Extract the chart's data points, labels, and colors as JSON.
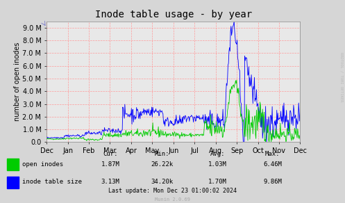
{
  "title": "Inode table usage - by year",
  "ylabel": "number of open inodes",
  "background_color": "#d6d6d6",
  "plot_bg_color": "#e8e8e8",
  "grid_color": "#ff9999",
  "x_tick_labels": [
    "Dec",
    "Jan",
    "Feb",
    "Mar",
    "Apr",
    "May",
    "Jun",
    "Jul",
    "Aug",
    "Sep",
    "Oct",
    "Nov",
    "Dec"
  ],
  "y_tick_labels": [
    "0.0",
    "1.0 M",
    "2.0 M",
    "3.0 M",
    "4.0 M",
    "5.0 M",
    "6.0 M",
    "7.0 M",
    "8.0 M",
    "9.0 M"
  ],
  "y_max": 9500000,
  "legend_items": [
    {
      "label": "open inodes",
      "color": "#00cc00"
    },
    {
      "label": "inode table size",
      "color": "#0000ff"
    }
  ],
  "stats": {
    "headers": [
      "Cur:",
      "Min:",
      "Avg:",
      "Max:"
    ],
    "rows": [
      {
        "label": "open inodes",
        "color": "#00cc00",
        "values": [
          "1.87M",
          "26.22k",
          "1.03M",
          "6.46M"
        ]
      },
      {
        "label": "inode table size",
        "color": "#0000ff",
        "values": [
          "3.13M",
          "34.20k",
          "1.70M",
          "9.86M"
        ]
      }
    ]
  },
  "footer": "Last update: Mon Dec 23 01:00:02 2024",
  "watermark": "Munin 2.0.69",
  "right_label": "RRDTOOL / TOBI OETIKER",
  "title_fontsize": 10,
  "axis_fontsize": 7,
  "label_fontsize": 7
}
